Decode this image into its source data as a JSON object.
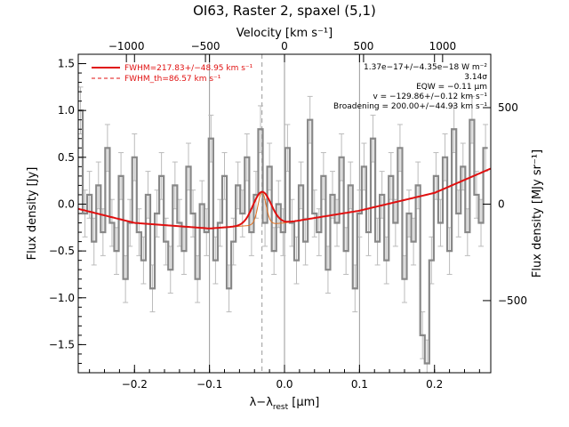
{
  "chart_data": {
    "type": "line",
    "title": "OI63, Raster 2, spaxel (5,1)",
    "xlabel_main": "λ−λ",
    "xlabel_sub": "rest",
    "xlabel_unit": " [μm]",
    "ylabel_left": "Flux density [Jy]",
    "ylabel_right": "Flux density [MJy sr⁻¹]",
    "top_axis_label": "Velocity [km s⁻¹]",
    "xlim": [
      -0.275,
      0.275
    ],
    "ylim": [
      -1.8,
      1.6
    ],
    "x_ticks": [
      -0.2,
      -0.1,
      0.0,
      0.1,
      0.2
    ],
    "x_tick_labels": [
      "−0.2",
      "−0.1",
      "0.0",
      "0.1",
      "0.2"
    ],
    "y_ticks": [
      -1.5,
      -1.0,
      -0.5,
      0.0,
      0.5,
      1.0,
      1.5
    ],
    "y_tick_labels": [
      "−1.5",
      "−1.0",
      "−0.5",
      "0.0",
      "0.5",
      "1.0",
      "1.5"
    ],
    "top_ticks_kms": [
      -1000,
      -500,
      0,
      500,
      1000
    ],
    "top_tick_labels": [
      "−1000",
      "−500",
      "0",
      "500",
      "1000"
    ],
    "right_ticks_mjy": [
      -500,
      0,
      500
    ],
    "right_tick_labels": [
      "−500",
      "0",
      "500"
    ],
    "line_center_um": 0,
    "fitted_peak_um": -0.03,
    "gridlines_um": [
      -0.1,
      0.1
    ],
    "legend": [
      {
        "label": "FWHM=217.83+/−48.95 km s⁻¹",
        "style": "solid"
      },
      {
        "label": "FWHM_th=86.57 km s⁻¹",
        "style": "dashed"
      }
    ],
    "annotations": [
      "1.37e−17+/−4.35e−18 W m⁻²",
      "3.14σ",
      "EQW = −0.11 μm",
      "v = −129.86+/−0.12 km s⁻¹",
      "Broadening = 200.00+/−44.93 km s⁻¹"
    ],
    "baseline": {
      "x": [
        -0.275,
        -0.2,
        -0.1,
        0.0,
        0.1,
        0.2,
        0.275
      ],
      "y": [
        -0.05,
        -0.2,
        -0.26,
        -0.2,
        -0.07,
        0.12,
        0.38
      ]
    },
    "gaussian": {
      "amplitude": 0.35,
      "center": -0.03,
      "sigma": 0.012
    },
    "gaussian_thermal": {
      "amplitude": 0.35,
      "center": -0.03,
      "sigma": 0.0053
    },
    "data": {
      "x": [
        -0.272,
        -0.266,
        -0.26,
        -0.254,
        -0.248,
        -0.242,
        -0.236,
        -0.23,
        -0.224,
        -0.218,
        -0.212,
        -0.206,
        -0.2,
        -0.194,
        -0.188,
        -0.182,
        -0.176,
        -0.17,
        -0.164,
        -0.158,
        -0.152,
        -0.146,
        -0.14,
        -0.134,
        -0.128,
        -0.122,
        -0.116,
        -0.11,
        -0.104,
        -0.098,
        -0.092,
        -0.086,
        -0.08,
        -0.074,
        -0.068,
        -0.062,
        -0.056,
        -0.05,
        -0.044,
        -0.038,
        -0.032,
        -0.026,
        -0.02,
        -0.014,
        -0.008,
        -0.002,
        0.004,
        0.01,
        0.016,
        0.022,
        0.028,
        0.034,
        0.04,
        0.046,
        0.052,
        0.058,
        0.064,
        0.07,
        0.076,
        0.082,
        0.088,
        0.094,
        0.1,
        0.106,
        0.112,
        0.118,
        0.124,
        0.13,
        0.136,
        0.142,
        0.148,
        0.154,
        0.16,
        0.166,
        0.172,
        0.178,
        0.184,
        0.19,
        0.196,
        0.202,
        0.208,
        0.214,
        0.22,
        0.226,
        0.232,
        0.238,
        0.244,
        0.25,
        0.256,
        0.262,
        0.268
      ],
      "y": [
        1.0,
        -0.1,
        0.1,
        -0.4,
        0.2,
        -0.3,
        0.6,
        -0.2,
        -0.5,
        0.3,
        -0.8,
        -0.2,
        0.5,
        -0.3,
        -0.6,
        0.1,
        -0.9,
        -0.1,
        0.3,
        -0.4,
        -0.7,
        0.2,
        -0.2,
        -0.5,
        0.4,
        -0.1,
        -0.8,
        0.0,
        -0.3,
        0.7,
        -0.6,
        -0.2,
        0.3,
        -0.9,
        -0.4,
        0.2,
        -0.1,
        0.5,
        -0.3,
        0.1,
        0.8,
        -0.2,
        0.4,
        -0.5,
        0.0,
        -0.3,
        0.6,
        -0.2,
        -0.6,
        0.2,
        -0.4,
        0.9,
        -0.1,
        -0.3,
        0.3,
        -0.7,
        0.1,
        -0.2,
        0.5,
        -0.5,
        0.2,
        -0.9,
        -0.1,
        0.4,
        -0.3,
        0.7,
        -0.4,
        0.1,
        -0.6,
        0.3,
        -0.2,
        0.6,
        -0.8,
        -0.1,
        -0.4,
        0.2,
        -1.4,
        -1.7,
        -0.6,
        0.3,
        -0.2,
        0.5,
        -0.5,
        0.8,
        -0.1,
        0.4,
        -0.3,
        0.9,
        0.1,
        -0.2,
        0.6
      ],
      "err": 0.25
    }
  }
}
